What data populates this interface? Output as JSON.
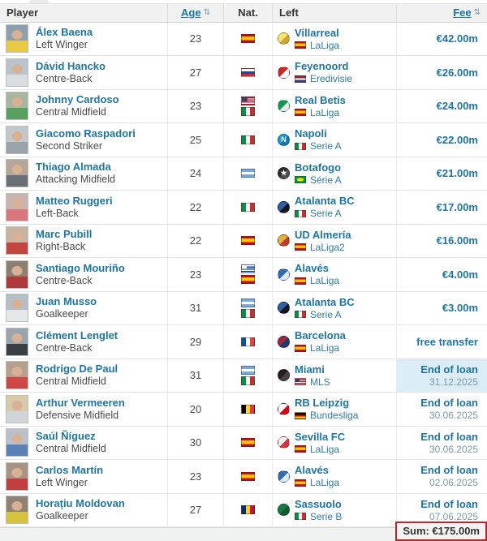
{
  "header": {
    "player_label": "Player",
    "age_label": "Age",
    "age_sort_icon": "⇅",
    "nat_label": "Nat.",
    "left_label": "Left",
    "fee_label": "Fee",
    "fee_sort_icon": "⇅"
  },
  "footer": {
    "sum_label": "Sum: €175.00m"
  },
  "colors": {
    "link_blue": "#1d75a3",
    "header_bg": "#f1f1f1",
    "highlight_cell": "#dcedf7",
    "annotation_red": "#b42a2a",
    "footer_bg": "#f0f1f1"
  },
  "rows": [
    {
      "name": "Álex Baena",
      "position": "Left Winger",
      "age": "23",
      "nationalities": [
        "es"
      ],
      "club": "Villarreal",
      "league": "LaLiga",
      "league_flag": "es",
      "crest_colors": [
        "#f7e86b",
        "#caa53d"
      ],
      "crest_glyph": "",
      "photo_colors": [
        "#8e9fae",
        "#e8c945"
      ],
      "fee_type": "fee",
      "fee": "€42.00m",
      "highlight": false
    },
    {
      "name": "Dávid Hancko",
      "position": "Centre-Back",
      "age": "27",
      "nationalities": [
        "sk"
      ],
      "club": "Feyenoord",
      "league": "Eredivisie",
      "league_flag": "nl",
      "crest_colors": [
        "#d22222",
        "#ffffff"
      ],
      "crest_glyph": "",
      "photo_colors": [
        "#b9c4cc",
        "#d8dde2"
      ],
      "fee_type": "fee",
      "fee": "€26.00m",
      "highlight": false
    },
    {
      "name": "Johnny Cardoso",
      "position": "Central Midfield",
      "age": "23",
      "nationalities": [
        "us",
        "it"
      ],
      "club": "Real Betis",
      "league": "LaLiga",
      "league_flag": "es",
      "crest_colors": [
        "#0a9b53",
        "#e7f0e9"
      ],
      "crest_glyph": "",
      "photo_colors": [
        "#a8b5a0",
        "#57a05f"
      ],
      "fee_type": "fee",
      "fee": "€24.00m",
      "highlight": false
    },
    {
      "name": "Giacomo Raspadori",
      "position": "Second Striker",
      "age": "25",
      "nationalities": [
        "it"
      ],
      "club": "Napoli",
      "league": "Serie A",
      "league_flag": "it",
      "crest_colors": [
        "#1a9ad6",
        "#1578ad"
      ],
      "crest_glyph": "N",
      "photo_colors": [
        "#c2c7cc",
        "#9aa2ab"
      ],
      "fee_type": "fee",
      "fee": "€22.00m",
      "highlight": false
    },
    {
      "name": "Thiago Almada",
      "position": "Attacking Midfield",
      "age": "24",
      "nationalities": [
        "ar"
      ],
      "club": "Botafogo",
      "league": "Série A",
      "league_flag": "br",
      "crest_colors": [
        "#2b2b2b",
        "#4d4d55"
      ],
      "crest_glyph": "★",
      "photo_colors": [
        "#b4a79a",
        "#6b7076"
      ],
      "fee_type": "fee",
      "fee": "€21.00m",
      "highlight": false
    },
    {
      "name": "Matteo Ruggeri",
      "position": "Left-Back",
      "age": "22",
      "nationalities": [
        "it"
      ],
      "club": "Atalanta BC",
      "league": "Serie A",
      "league_flag": "it",
      "crest_colors": [
        "#2a61a8",
        "#16161c"
      ],
      "crest_glyph": "",
      "photo_colors": [
        "#c9b4b0",
        "#d9777f"
      ],
      "fee_type": "fee",
      "fee": "€17.00m",
      "highlight": false
    },
    {
      "name": "Marc Pubill",
      "position": "Right-Back",
      "age": "22",
      "nationalities": [
        "es"
      ],
      "club": "UD Almería",
      "league": "LaLiga2",
      "league_flag": "es",
      "crest_colors": [
        "#e0b43c",
        "#c23a34"
      ],
      "crest_glyph": "",
      "photo_colors": [
        "#c7b39f",
        "#c2453f"
      ],
      "fee_type": "fee",
      "fee": "€16.00m",
      "highlight": false
    },
    {
      "name": "Santiago Mouriño",
      "position": "Centre-Back",
      "age": "23",
      "nationalities": [
        "uy",
        "es"
      ],
      "club": "Alavés",
      "league": "LaLiga",
      "league_flag": "es",
      "crest_colors": [
        "#2f6bb5",
        "#dfe9f5"
      ],
      "crest_glyph": "",
      "photo_colors": [
        "#8d7f72",
        "#b03a3a"
      ],
      "fee_type": "fee",
      "fee": "€4.00m",
      "highlight": false
    },
    {
      "name": "Juan Musso",
      "position": "Goalkeeper",
      "age": "31",
      "nationalities": [
        "ar",
        "it"
      ],
      "club": "Atalanta BC",
      "league": "Serie A",
      "league_flag": "it",
      "crest_colors": [
        "#2a61a8",
        "#16161c"
      ],
      "crest_glyph": "",
      "photo_colors": [
        "#b4bec6",
        "#e3e7ea"
      ],
      "fee_type": "fee",
      "fee": "€3.00m",
      "highlight": false
    },
    {
      "name": "Clément Lenglet",
      "position": "Centre-Back",
      "age": "29",
      "nationalities": [
        "fr"
      ],
      "club": "Barcelona",
      "league": "LaLiga",
      "league_flag": "es",
      "crest_colors": [
        "#a0243e",
        "#1c3b6e"
      ],
      "crest_glyph": "",
      "photo_colors": [
        "#9aa4ad",
        "#3a3f46"
      ],
      "fee_type": "fee",
      "fee": "free transfer",
      "highlight": false
    },
    {
      "name": "Rodrigo De Paul",
      "position": "Central Midfield",
      "age": "31",
      "nationalities": [
        "ar",
        "it"
      ],
      "club": "Miami",
      "league": "MLS",
      "league_flag": "us",
      "crest_colors": [
        "#231f20",
        "#4a4145"
      ],
      "crest_glyph": "",
      "photo_colors": [
        "#b79f8d",
        "#cf4646"
      ],
      "fee_type": "loan",
      "fee_label": "End of loan",
      "fee_date": "31.12.2025",
      "highlight": true
    },
    {
      "name": "Arthur Vermeeren",
      "position": "Defensive Midfield",
      "age": "20",
      "nationalities": [
        "be"
      ],
      "club": "RB Leipzig",
      "league": "Bundesliga",
      "league_flag": "de",
      "crest_colors": [
        "#ffffff",
        "#d6001c"
      ],
      "crest_glyph": "",
      "photo_colors": [
        "#d8c9a8",
        "#d0d5da"
      ],
      "fee_type": "loan",
      "fee_label": "End of loan",
      "fee_date": "30.06.2025",
      "highlight": false
    },
    {
      "name": "Saúl Ñíguez",
      "position": "Central Midfield",
      "age": "30",
      "nationalities": [
        "es"
      ],
      "club": "Sevilla FC",
      "league": "LaLiga",
      "league_flag": "es",
      "crest_colors": [
        "#f2f2f2",
        "#d8343e"
      ],
      "crest_glyph": "",
      "photo_colors": [
        "#b9c0c8",
        "#5b82b5"
      ],
      "fee_type": "loan",
      "fee_label": "End of loan",
      "fee_date": "30.06.2025",
      "highlight": false
    },
    {
      "name": "Carlos Martín",
      "position": "Left Winger",
      "age": "23",
      "nationalities": [
        "es"
      ],
      "club": "Alavés",
      "league": "LaLiga",
      "league_flag": "es",
      "crest_colors": [
        "#2f6bb5",
        "#dfe9f5"
      ],
      "crest_glyph": "",
      "photo_colors": [
        "#a89484",
        "#c04040"
      ],
      "fee_type": "loan",
      "fee_label": "End of loan",
      "fee_date": "02.06.2025",
      "highlight": false
    },
    {
      "name": "Horațiu Moldovan",
      "position": "Goalkeeper",
      "age": "27",
      "nationalities": [
        "ro"
      ],
      "club": "Sassuolo",
      "league": "Serie B",
      "league_flag": "it",
      "crest_colors": [
        "#1b7a43",
        "#0e5c30"
      ],
      "crest_glyph": "",
      "photo_colors": [
        "#8f8274",
        "#d8c33e"
      ],
      "fee_type": "loan",
      "fee_label": "End of loan",
      "fee_date": "07.06.2025",
      "highlight": false
    }
  ]
}
